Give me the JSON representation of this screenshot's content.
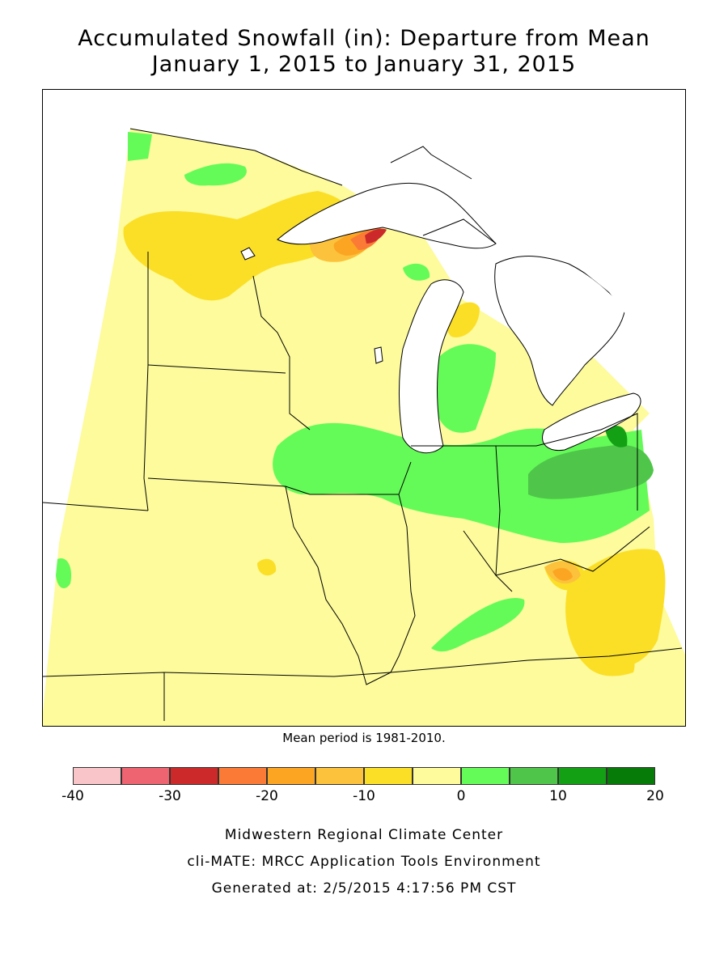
{
  "title": {
    "line1": "Accumulated Snowfall (in): Departure from Mean",
    "line2": "January 1, 2015 to January 31, 2015"
  },
  "mean_note": "Mean period is 1981-2010.",
  "legend": {
    "ticks": [
      "-40",
      "-30",
      "-20",
      "-10",
      "0",
      "10",
      "20"
    ],
    "tick_values": [
      -40,
      -30,
      -20,
      -10,
      0,
      10,
      20
    ],
    "bins": [
      {
        "min": -40,
        "max": -35,
        "color": "#f9c5c8"
      },
      {
        "min": -35,
        "max": -30,
        "color": "#ee6470"
      },
      {
        "min": -30,
        "max": -25,
        "color": "#cc2a2a"
      },
      {
        "min": -25,
        "max": -20,
        "color": "#fb7b36"
      },
      {
        "min": -20,
        "max": -15,
        "color": "#fba523"
      },
      {
        "min": -15,
        "max": -10,
        "color": "#fcc23b"
      },
      {
        "min": -10,
        "max": -5,
        "color": "#fbdf27"
      },
      {
        "min": -5,
        "max": 0,
        "color": "#fdfb9b"
      },
      {
        "min": 0,
        "max": 5,
        "color": "#64fb58"
      },
      {
        "min": 5,
        "max": 10,
        "color": "#4fc64a"
      },
      {
        "min": 10,
        "max": 15,
        "color": "#13a015"
      },
      {
        "min": 15,
        "max": 20,
        "color": "#067b07"
      }
    ]
  },
  "map": {
    "region": "Upper Midwest and Great Lakes",
    "colors": {
      "near_zero_deficit": "#fdfb9b",
      "deficit_5_10": "#fbdf27",
      "deficit_10_15": "#fcc23b",
      "deficit_15_20": "#fba523",
      "deficit_20_25": "#fb7b36",
      "deficit_25_30": "#cc2a2a",
      "surplus_0_5": "#64fb58",
      "surplus_5_10": "#4fc64a",
      "water": "#ffffff",
      "boundary": "#000000"
    }
  },
  "footer": {
    "line1": "Midwestern Regional Climate Center",
    "line2": "cli-MATE: MRCC Application Tools Environment",
    "line3": "Generated at: 2/5/2015 4:17:56 PM CST"
  }
}
